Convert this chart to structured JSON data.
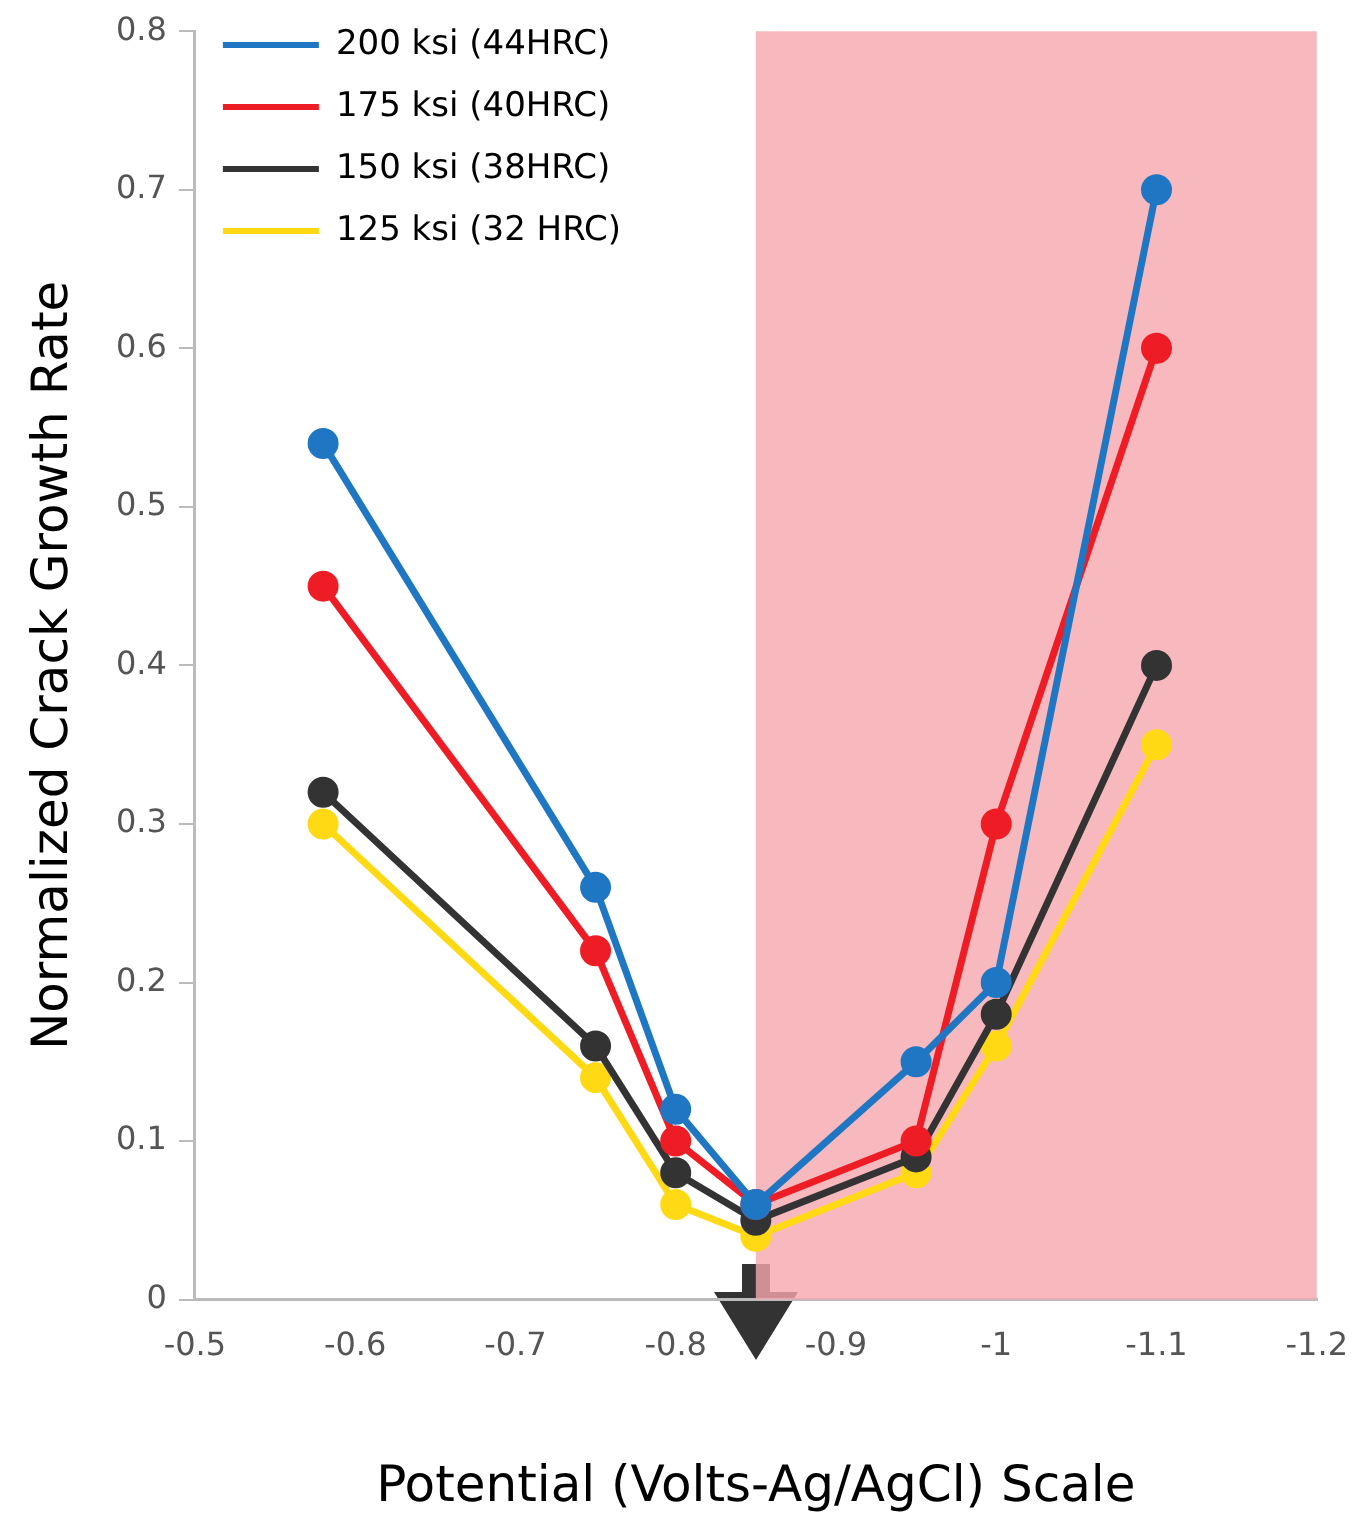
{
  "chart_data": {
    "type": "line",
    "xlabel": "Potential (Volts-Ag/AgCl) Scale",
    "ylabel": "Normalized Crack Growth Rate",
    "x": [
      -0.58,
      -0.75,
      -0.8,
      -0.85,
      -0.95,
      -1.0,
      -1.1
    ],
    "series": [
      {
        "name": "200 ksi (44HRC)",
        "color": "#1f77c4",
        "values": [
          0.54,
          0.26,
          0.12,
          0.06,
          0.15,
          0.2,
          0.7
        ]
      },
      {
        "name": "175 ksi (40HRC)",
        "color": "#ee1c25",
        "values": [
          0.45,
          0.22,
          0.1,
          0.06,
          0.1,
          0.3,
          0.6
        ]
      },
      {
        "name": "150 ksi (38HRC)",
        "color": "#333333",
        "values": [
          0.32,
          0.16,
          0.08,
          0.05,
          0.09,
          0.18,
          0.4
        ]
      },
      {
        "name": "125 ksi (32 HRC)",
        "color": "#ffd914",
        "values": [
          0.3,
          0.14,
          0.06,
          0.04,
          0.08,
          0.16,
          0.35
        ]
      }
    ],
    "xlim": [
      -0.5,
      -1.2
    ],
    "xticks": [
      -0.5,
      -0.6,
      -0.7,
      -0.8,
      -0.9,
      -1,
      -1.1,
      -1.2
    ],
    "ylim": [
      0,
      0.8
    ],
    "yticks": [
      0,
      0.1,
      0.2,
      0.3,
      0.4,
      0.5,
      0.6,
      0.7,
      0.8
    ],
    "bands": [
      {
        "axis": "x",
        "from": -0.85,
        "to": -1.2,
        "color": "#f8b9be"
      }
    ],
    "grid": false,
    "legend": "top left",
    "marker": "circle",
    "line_style": "solid"
  }
}
